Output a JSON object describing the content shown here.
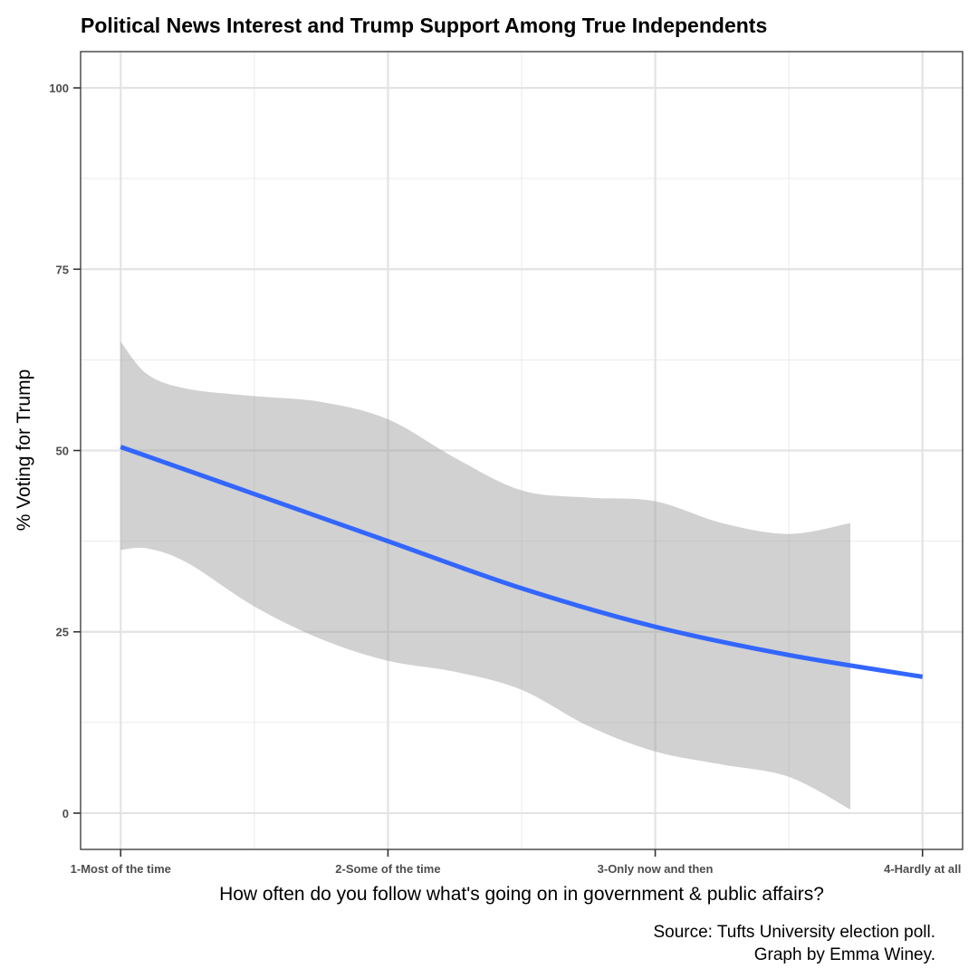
{
  "chart_data": {
    "type": "line",
    "title": "Political News Interest and Trump Support Among True Independents",
    "xlabel": "How often do you follow what's going on in government & public affairs?",
    "ylabel": "% Voting for Trump",
    "categories": [
      "1-Most of the time",
      "2-Some of the time",
      "3-Only now and then",
      "4-Hardly at all"
    ],
    "xlim": [
      0.85,
      4.15
    ],
    "ylim": [
      -5,
      105
    ],
    "yticks": [
      0,
      25,
      50,
      75,
      100
    ],
    "grid": true,
    "series": [
      {
        "type": "line",
        "color": "#3366ff",
        "x": [
          1.0,
          1.5,
          2.0,
          2.5,
          3.0,
          3.5,
          4.0
        ],
        "y": [
          50.5,
          44.0,
          37.5,
          31.0,
          25.7,
          21.8,
          18.8
        ]
      }
    ],
    "confidence_band": {
      "color": "#999999",
      "x": [
        1.0,
        1.1,
        1.25,
        1.5,
        1.75,
        2.0,
        2.25,
        2.5,
        2.75,
        3.0,
        3.25,
        3.5,
        3.73
      ],
      "upper": [
        65.0,
        60.5,
        58.5,
        57.5,
        56.7,
        54.3,
        49.0,
        44.5,
        43.5,
        43.0,
        40.0,
        38.5,
        40.0
      ],
      "lower": [
        36.3,
        36.5,
        34.5,
        28.5,
        24.0,
        21.0,
        19.5,
        17.0,
        12.0,
        8.5,
        6.7,
        5.0,
        0.5
      ]
    },
    "caption": [
      "Source: Tufts University election poll.",
      "Graph by Emma Winey."
    ]
  }
}
